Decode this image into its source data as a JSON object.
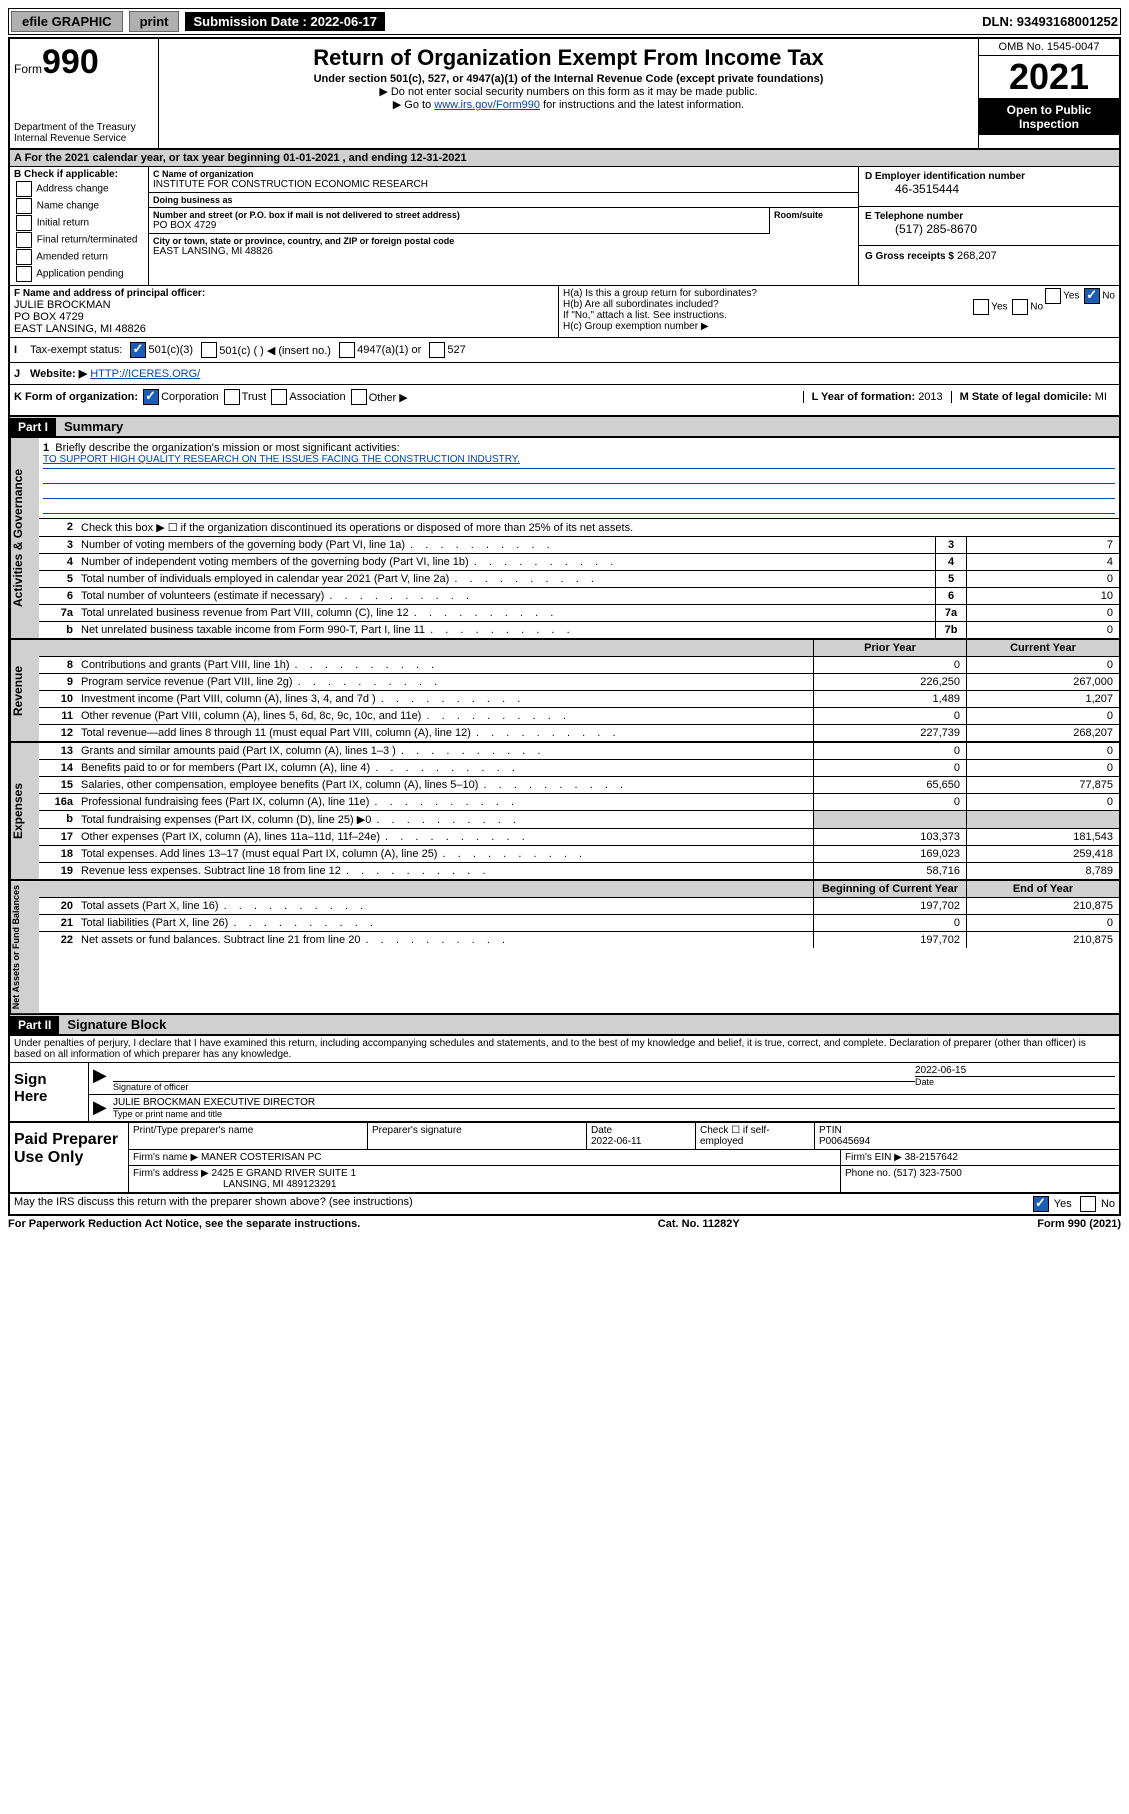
{
  "top": {
    "efile": "efile GRAPHIC",
    "print": "print",
    "sub_label": "Submission Date : 2022-06-17",
    "dln": "DLN: 93493168001252"
  },
  "header": {
    "form_word": "Form",
    "form_num": "990",
    "dept": "Department of the Treasury",
    "irs": "Internal Revenue Service",
    "title": "Return of Organization Exempt From Income Tax",
    "sub1": "Under section 501(c), 527, or 4947(a)(1) of the Internal Revenue Code (except private foundations)",
    "sub2": "▶ Do not enter social security numbers on this form as it may be made public.",
    "sub3_pre": "▶ Go to ",
    "sub3_link": "www.irs.gov/Form990",
    "sub3_post": " for instructions and the latest information.",
    "omb": "OMB No. 1545-0047",
    "year": "2021",
    "inspect": "Open to Public Inspection"
  },
  "rowA": "A For the 2021 calendar year, or tax year beginning 01-01-2021   , and ending 12-31-2021",
  "sectionB": {
    "title": "B Check if applicable:",
    "opts": [
      "Address change",
      "Name change",
      "Initial return",
      "Final return/terminated",
      "Amended return",
      "Application pending"
    ]
  },
  "sectionC": {
    "name_label": "C Name of organization",
    "name": "INSTITUTE FOR CONSTRUCTION ECONOMIC RESEARCH",
    "dba_label": "Doing business as",
    "dba": "",
    "street_label": "Number and street (or P.O. box if mail is not delivered to street address)",
    "street": "PO BOX 4729",
    "suite_label": "Room/suite",
    "city_label": "City or town, state or province, country, and ZIP or foreign postal code",
    "city": "EAST LANSING, MI  48826"
  },
  "sectionD": {
    "label": "D Employer identification number",
    "val": "46-3515444"
  },
  "sectionE": {
    "label": "E Telephone number",
    "val": "(517) 285-8670"
  },
  "sectionG": {
    "label": "G Gross receipts $",
    "val": "268,207"
  },
  "sectionF": {
    "label": "F Name and address of principal officer:",
    "name": "JULIE BROCKMAN",
    "addr1": "PO BOX 4729",
    "addr2": "EAST LANSING, MI  48826"
  },
  "sectionH": {
    "a": "H(a)  Is this a group return for subordinates?",
    "b": "H(b)  Are all subordinates included?",
    "note": "If \"No,\" attach a list. See instructions.",
    "c": "H(c)  Group exemption number ▶",
    "yes": "Yes",
    "no": "No"
  },
  "rowI": {
    "label": "Tax-exempt status:",
    "o1": "501(c)(3)",
    "o2": "501(c) (  ) ◀ (insert no.)",
    "o3": "4947(a)(1) or",
    "o4": "527"
  },
  "rowJ": {
    "label": "Website: ▶",
    "val": "HTTP://ICERES.ORG/"
  },
  "rowK": {
    "label": "K Form of organization:",
    "o1": "Corporation",
    "o2": "Trust",
    "o3": "Association",
    "o4": "Other ▶",
    "l_label": "L Year of formation:",
    "l_val": "2013",
    "m_label": "M State of legal domicile:",
    "m_val": "MI"
  },
  "part1": {
    "tag": "Part I",
    "title": "Summary"
  },
  "gov": {
    "tab": "Activities & Governance",
    "l1a": "Briefly describe the organization's mission or most significant activities:",
    "l1b": "TO SUPPORT HIGH QUALITY RESEARCH ON THE ISSUES FACING THE CONSTRUCTION INDUSTRY.",
    "l2": "Check this box ▶ ☐ if the organization discontinued its operations or disposed of more than 25% of its net assets.",
    "rows": [
      {
        "n": "3",
        "d": "Number of voting members of the governing body (Part VI, line 1a)",
        "box": "3",
        "v": "7"
      },
      {
        "n": "4",
        "d": "Number of independent voting members of the governing body (Part VI, line 1b)",
        "box": "4",
        "v": "4"
      },
      {
        "n": "5",
        "d": "Total number of individuals employed in calendar year 2021 (Part V, line 2a)",
        "box": "5",
        "v": "0"
      },
      {
        "n": "6",
        "d": "Total number of volunteers (estimate if necessary)",
        "box": "6",
        "v": "10"
      },
      {
        "n": "7a",
        "d": "Total unrelated business revenue from Part VIII, column (C), line 12",
        "box": "7a",
        "v": "0"
      },
      {
        "n": "b",
        "d": "Net unrelated business taxable income from Form 990-T, Part I, line 11",
        "box": "7b",
        "v": "0"
      }
    ]
  },
  "rev": {
    "tab": "Revenue",
    "hdr_prior": "Prior Year",
    "hdr_curr": "Current Year",
    "rows": [
      {
        "n": "8",
        "d": "Contributions and grants (Part VIII, line 1h)",
        "p": "0",
        "c": "0"
      },
      {
        "n": "9",
        "d": "Program service revenue (Part VIII, line 2g)",
        "p": "226,250",
        "c": "267,000"
      },
      {
        "n": "10",
        "d": "Investment income (Part VIII, column (A), lines 3, 4, and 7d )",
        "p": "1,489",
        "c": "1,207"
      },
      {
        "n": "11",
        "d": "Other revenue (Part VIII, column (A), lines 5, 6d, 8c, 9c, 10c, and 11e)",
        "p": "0",
        "c": "0"
      },
      {
        "n": "12",
        "d": "Total revenue—add lines 8 through 11 (must equal Part VIII, column (A), line 12)",
        "p": "227,739",
        "c": "268,207"
      }
    ]
  },
  "exp": {
    "tab": "Expenses",
    "rows": [
      {
        "n": "13",
        "d": "Grants and similar amounts paid (Part IX, column (A), lines 1–3 )",
        "p": "0",
        "c": "0"
      },
      {
        "n": "14",
        "d": "Benefits paid to or for members (Part IX, column (A), line 4)",
        "p": "0",
        "c": "0"
      },
      {
        "n": "15",
        "d": "Salaries, other compensation, employee benefits (Part IX, column (A), lines 5–10)",
        "p": "65,650",
        "c": "77,875"
      },
      {
        "n": "16a",
        "d": "Professional fundraising fees (Part IX, column (A), line 11e)",
        "p": "0",
        "c": "0"
      },
      {
        "n": "b",
        "d": "Total fundraising expenses (Part IX, column (D), line 25) ▶0",
        "p": "",
        "c": "",
        "shaded": true
      },
      {
        "n": "17",
        "d": "Other expenses (Part IX, column (A), lines 11a–11d, 11f–24e)",
        "p": "103,373",
        "c": "181,543"
      },
      {
        "n": "18",
        "d": "Total expenses. Add lines 13–17 (must equal Part IX, column (A), line 25)",
        "p": "169,023",
        "c": "259,418"
      },
      {
        "n": "19",
        "d": "Revenue less expenses. Subtract line 18 from line 12",
        "p": "58,716",
        "c": "8,789"
      }
    ]
  },
  "net": {
    "tab": "Net Assets or Fund Balances",
    "hdr_beg": "Beginning of Current Year",
    "hdr_end": "End of Year",
    "rows": [
      {
        "n": "20",
        "d": "Total assets (Part X, line 16)",
        "p": "197,702",
        "c": "210,875"
      },
      {
        "n": "21",
        "d": "Total liabilities (Part X, line 26)",
        "p": "0",
        "c": "0"
      },
      {
        "n": "22",
        "d": "Net assets or fund balances. Subtract line 21 from line 20",
        "p": "197,702",
        "c": "210,875"
      }
    ]
  },
  "part2": {
    "tag": "Part II",
    "title": "Signature Block"
  },
  "sig": {
    "intro": "Under penalties of perjury, I declare that I have examined this return, including accompanying schedules and statements, and to the best of my knowledge and belief, it is true, correct, and complete. Declaration of preparer (other than officer) is based on all information of which preparer has any knowledge.",
    "left": "Sign Here",
    "sig_label": "Signature of officer",
    "date": "2022-06-15",
    "date_label": "Date",
    "name": "JULIE BROCKMAN  EXECUTIVE DIRECTOR",
    "name_label": "Type or print name and title"
  },
  "prep": {
    "left": "Paid Preparer Use Only",
    "h1": "Print/Type preparer's name",
    "h2": "Preparer's signature",
    "h3": "Date",
    "h3v": "2022-06-11",
    "h4": "Check ☐ if self-employed",
    "h5": "PTIN",
    "h5v": "P00645694",
    "firm_label": "Firm's name    ▶",
    "firm": "MANER COSTERISAN PC",
    "ein_label": "Firm's EIN ▶",
    "ein": "38-2157642",
    "addr_label": "Firm's address ▶",
    "addr1": "2425 E GRAND RIVER SUITE 1",
    "addr2": "LANSING, MI  489123291",
    "phone_label": "Phone no.",
    "phone": "(517) 323-7500"
  },
  "footer": {
    "q": "May the IRS discuss this return with the preparer shown above? (see instructions)",
    "yes": "Yes",
    "no": "No",
    "pra": "For Paperwork Reduction Act Notice, see the separate instructions.",
    "cat": "Cat. No. 11282Y",
    "form": "Form 990 (2021)"
  }
}
